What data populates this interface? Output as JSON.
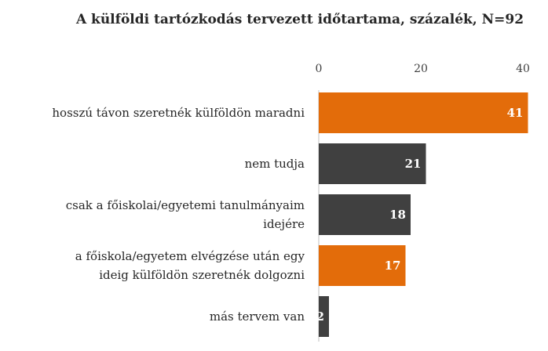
{
  "chart_data": {
    "type": "bar",
    "orientation": "horizontal",
    "title": "A külföldi tartózkodás tervezett időtartama, százalék, N=92",
    "x_axis_position": "top",
    "xlim": [
      0,
      41
    ],
    "ticks": [
      0,
      20,
      40
    ],
    "grid": false,
    "legend": "none",
    "categories": [
      [
        "hosszú távon szeretnék külföldön maradni"
      ],
      [
        "nem tudja"
      ],
      [
        "csak a főiskolai/egyetemi tanulmányaim",
        "idejére"
      ],
      [
        "a főiskola/egyetem elvégzése után egy",
        "ideig külföldön szeretnék dolgozni"
      ],
      [
        "más tervem van"
      ]
    ],
    "values": [
      41,
      21,
      18,
      17,
      2
    ],
    "colors": [
      "#e36c0a",
      "#404040",
      "#404040",
      "#e36c0a",
      "#404040"
    ],
    "value_label_color": "#ffffff",
    "axis_color": "#bfbfbf"
  }
}
